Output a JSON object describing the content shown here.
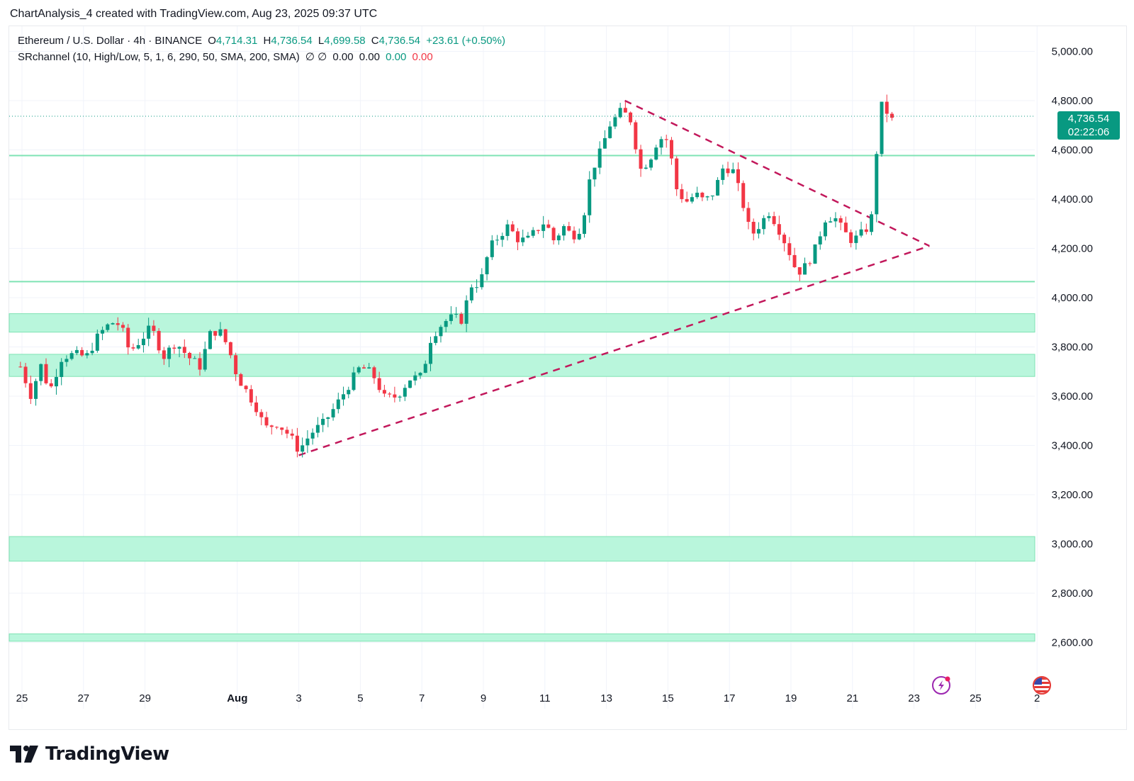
{
  "header": {
    "text": "ChartAnalysis_4 created with TradingView.com, Aug 23, 2025 09:37 UTC"
  },
  "legend": {
    "symbol": "Ethereum / U.S. Dollar · 4h · BINANCE",
    "o_label": "O",
    "o_value": "4,714.31",
    "h_label": "H",
    "h_value": "4,736.54",
    "l_label": "L",
    "l_value": "4,699.58",
    "c_label": "C",
    "c_value": "4,736.54",
    "change": "+23.61 (+0.50%)",
    "indicator": "SRchannel (10, High/Low, 5, 1, 6, 290, 50, SMA, 200, SMA)",
    "ind_icons": "∅ ∅",
    "ind_v1": "0.00",
    "ind_v2": "0.00",
    "ind_v3": "0.00",
    "ind_v4": "0.00"
  },
  "price_badge": {
    "price": "4,736.54",
    "countdown": "02:22:06"
  },
  "brand": {
    "name": "TradingView"
  },
  "colors": {
    "up": "#089981",
    "down": "#f23645",
    "zone": "#b9f6dc",
    "zone_border": "#7fe3b4",
    "trend": "#c2185b"
  },
  "chart_data": {
    "type": "candlestick",
    "interval": "4h",
    "yticks": [
      2600,
      2800,
      3000,
      3200,
      3400,
      3600,
      3800,
      4000,
      4200,
      4400,
      4600,
      4800,
      5000
    ],
    "ytick_labels": [
      "2,600.00",
      "2,800.00",
      "3,000.00",
      "3,200.00",
      "3,400.00",
      "3,600.00",
      "3,800.00",
      "4,000.00",
      "4,200.00",
      "4,400.00",
      "4,600.00",
      "4,800.00",
      "5,000.00"
    ],
    "ylim": [
      2470,
      5110
    ],
    "xlim": [
      24.8,
      33.1
    ],
    "xticks": [
      {
        "label": "25",
        "pos": 25
      },
      {
        "label": "27",
        "pos": 27
      },
      {
        "label": "29",
        "pos": 29
      },
      {
        "label": "Aug",
        "pos": 32
      },
      {
        "label": "3",
        "pos": 34
      },
      {
        "label": "5",
        "pos": 36
      },
      {
        "label": "7",
        "pos": 38
      },
      {
        "label": "9",
        "pos": 40
      },
      {
        "label": "11",
        "pos": 42
      },
      {
        "label": "13",
        "pos": 44
      },
      {
        "label": "15",
        "pos": 46
      },
      {
        "label": "17",
        "pos": 48
      },
      {
        "label": "19",
        "pos": 50
      },
      {
        "label": "21",
        "pos": 52
      },
      {
        "label": "23",
        "pos": 54
      },
      {
        "label": "25",
        "pos": 56
      },
      {
        "label": "2",
        "pos": 58
      }
    ],
    "zones": [
      {
        "low": 3860,
        "high": 3935
      },
      {
        "low": 3680,
        "high": 3770
      },
      {
        "low": 2930,
        "high": 3030
      },
      {
        "low": 2605,
        "high": 2635
      }
    ],
    "levels": [
      4577,
      4065
    ],
    "last_price": 4736.54,
    "trendlines": [
      {
        "x1": 34.0,
        "y1": 3360,
        "x2": 54.5,
        "y2": 4210
      },
      {
        "x1": 44.6,
        "y1": 4800,
        "x2": 54.5,
        "y2": 4210
      }
    ],
    "anchors": [
      [
        24.95,
        3720
      ],
      [
        25.3,
        3600
      ],
      [
        25.6,
        3730
      ],
      [
        25.9,
        3620
      ],
      [
        26.3,
        3760
      ],
      [
        26.7,
        3770
      ],
      [
        27.1,
        3760
      ],
      [
        27.5,
        3850
      ],
      [
        27.9,
        3900
      ],
      [
        28.2,
        3890
      ],
      [
        28.5,
        3780
      ],
      [
        28.8,
        3820
      ],
      [
        29.2,
        3880
      ],
      [
        29.6,
        3760
      ],
      [
        30.0,
        3820
      ],
      [
        30.4,
        3760
      ],
      [
        30.8,
        3720
      ],
      [
        31.1,
        3850
      ],
      [
        31.4,
        3870
      ],
      [
        31.7,
        3800
      ],
      [
        32.0,
        3680
      ],
      [
        32.3,
        3620
      ],
      [
        32.6,
        3560
      ],
      [
        32.9,
        3470
      ],
      [
        33.3,
        3490
      ],
      [
        33.7,
        3440
      ],
      [
        34.0,
        3380
      ],
      [
        34.4,
        3450
      ],
      [
        34.8,
        3490
      ],
      [
        35.2,
        3560
      ],
      [
        35.6,
        3640
      ],
      [
        36.0,
        3720
      ],
      [
        36.4,
        3690
      ],
      [
        36.8,
        3590
      ],
      [
        37.2,
        3600
      ],
      [
        37.6,
        3670
      ],
      [
        38.0,
        3680
      ],
      [
        38.3,
        3840
      ],
      [
        38.7,
        3900
      ],
      [
        39.0,
        3920
      ],
      [
        39.3,
        3910
      ],
      [
        39.6,
        4050
      ],
      [
        39.9,
        4060
      ],
      [
        40.2,
        4200
      ],
      [
        40.5,
        4250
      ],
      [
        40.8,
        4290
      ],
      [
        41.1,
        4240
      ],
      [
        41.4,
        4230
      ],
      [
        41.7,
        4270
      ],
      [
        42.0,
        4310
      ],
      [
        42.3,
        4230
      ],
      [
        42.6,
        4290
      ],
      [
        42.9,
        4250
      ],
      [
        43.2,
        4290
      ],
      [
        43.5,
        4510
      ],
      [
        43.8,
        4590
      ],
      [
        44.1,
        4700
      ],
      [
        44.5,
        4760
      ],
      [
        44.8,
        4720
      ],
      [
        45.1,
        4520
      ],
      [
        45.4,
        4560
      ],
      [
        45.7,
        4650
      ],
      [
        46.0,
        4640
      ],
      [
        46.3,
        4430
      ],
      [
        46.6,
        4390
      ],
      [
        46.9,
        4420
      ],
      [
        47.2,
        4390
      ],
      [
        47.5,
        4430
      ],
      [
        47.8,
        4530
      ],
      [
        48.1,
        4520
      ],
      [
        48.4,
        4400
      ],
      [
        48.7,
        4250
      ],
      [
        49.0,
        4300
      ],
      [
        49.3,
        4350
      ],
      [
        49.6,
        4280
      ],
      [
        49.9,
        4200
      ],
      [
        50.2,
        4100
      ],
      [
        50.5,
        4130
      ],
      [
        50.8,
        4200
      ],
      [
        51.1,
        4320
      ],
      [
        51.4,
        4330
      ],
      [
        51.7,
        4270
      ],
      [
        52.0,
        4230
      ],
      [
        52.3,
        4260
      ],
      [
        52.6,
        4300
      ],
      [
        52.8,
        4620
      ],
      [
        53.0,
        4830
      ],
      [
        53.2,
        4700
      ],
      [
        53.35,
        4736
      ]
    ]
  }
}
